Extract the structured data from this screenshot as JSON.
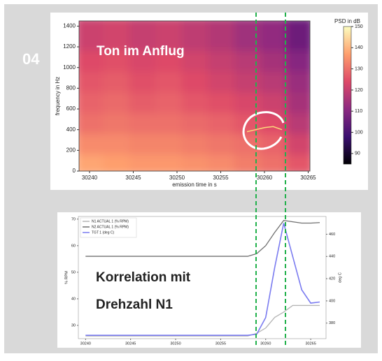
{
  "slide_number": "04",
  "chart_data": [
    {
      "type": "spectrogram",
      "annotation": "Ton im Anflug",
      "x_label": "emission time in s",
      "y_label": "frequency in Hz",
      "colorbar_label": "PSD in dB",
      "xlim": [
        30238.8,
        30265.2
      ],
      "xticks": [
        30240,
        30245,
        30250,
        30255,
        30260,
        30265
      ],
      "ylim": [
        0,
        1450
      ],
      "yticks": [
        0,
        200,
        400,
        600,
        800,
        1000,
        1200,
        1400
      ],
      "clim": [
        85,
        150
      ],
      "cticks": [
        90,
        100,
        110,
        120,
        130,
        140,
        150
      ],
      "colormap": [
        "#000004",
        "#3b0f70",
        "#8c2981",
        "#de4968",
        "#fe9f6d",
        "#fcfdbf"
      ],
      "xbins": [
        30238.8,
        30242,
        30245,
        30248,
        30251,
        30254,
        30257,
        30260,
        30263,
        30265.2
      ],
      "ybins": [
        0,
        200,
        400,
        600,
        800,
        1000,
        1200,
        1450
      ],
      "values": [
        [
          138,
          137,
          136,
          136,
          135,
          134,
          132,
          130,
          126
        ],
        [
          134,
          134,
          133,
          133,
          132,
          131,
          130,
          128,
          122
        ],
        [
          130,
          131,
          130,
          130,
          129,
          128,
          126,
          124,
          118
        ],
        [
          128,
          129,
          127,
          128,
          126,
          125,
          123,
          121,
          115
        ],
        [
          126,
          127,
          125,
          126,
          124,
          122,
          120,
          118,
          113
        ],
        [
          124,
          125,
          123,
          124,
          122,
          120,
          118,
          115,
          110
        ],
        [
          121,
          122,
          120,
          121,
          119,
          117,
          114,
          112,
          106
        ]
      ],
      "tone": {
        "color": "#fcd97a",
        "x": [
          30258,
          30259,
          30260,
          30261,
          30262
        ],
        "values": [
          380,
          400,
          420,
          430,
          400
        ]
      }
    },
    {
      "type": "line",
      "annotation": [
        "Korrelation mit",
        "Drehzahl N1"
      ],
      "y_label": "% RPM",
      "y2_label": "deg C",
      "xlim": [
        30239.2,
        30266.7
      ],
      "xticks": [
        30240,
        30245,
        30250,
        30255,
        30260,
        30265
      ],
      "ylim": [
        25,
        71
      ],
      "yticks": [
        30,
        40,
        50,
        60,
        70
      ],
      "y2lim": [
        366,
        476
      ],
      "y2ticks": [
        380,
        400,
        420,
        440,
        460
      ],
      "x": [
        30240,
        30245,
        30250,
        30255,
        30258,
        30259,
        30260,
        30261,
        30262,
        30263,
        30264,
        30265,
        30266
      ],
      "series": [
        {
          "name": "N1 ACTUAL 1 (% RPM)",
          "color": "#b5b5b5",
          "values": [
            26,
            26,
            26,
            26,
            26,
            27,
            29,
            33,
            35,
            37.5,
            37.5,
            37.5,
            37.5
          ]
        },
        {
          "name": "N2 ACTUAL 1 (% RPM)",
          "color": "#707070",
          "values": [
            56,
            56,
            56,
            56,
            56,
            57,
            60,
            65,
            69.5,
            69,
            68.5,
            68.5,
            68.7
          ]
        },
        {
          "name": "TGT 1 (deg C)",
          "color": "#7b7cf0",
          "axis": "y2",
          "values": [
            369,
            369,
            369,
            369,
            369,
            370,
            385,
            430,
            470,
            440,
            410,
            398,
            399
          ]
        }
      ]
    }
  ]
}
